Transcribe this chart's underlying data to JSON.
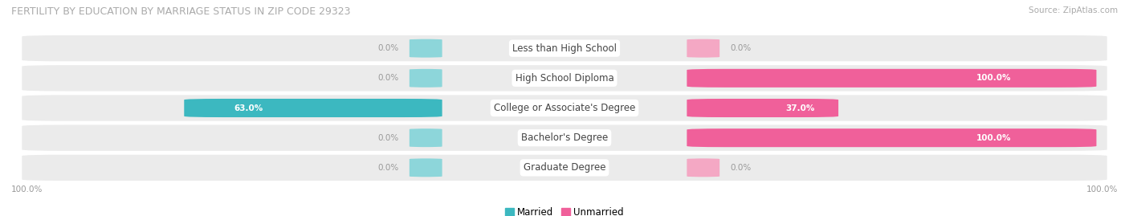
{
  "title": "FERTILITY BY EDUCATION BY MARRIAGE STATUS IN ZIP CODE 29323",
  "source": "Source: ZipAtlas.com",
  "categories": [
    "Less than High School",
    "High School Diploma",
    "College or Associate's Degree",
    "Bachelor's Degree",
    "Graduate Degree"
  ],
  "married": [
    0.0,
    0.0,
    63.0,
    0.0,
    0.0
  ],
  "unmarried": [
    0.0,
    100.0,
    37.0,
    100.0,
    0.0
  ],
  "married_color_full": "#3cb8c0",
  "married_color_stub": "#8dd6da",
  "unmarried_color_full": "#f0609a",
  "unmarried_color_stub": "#f4a8c4",
  "row_bg_color": "#ebebeb",
  "row_bg_alt": "#f5f5f5",
  "label_bg_color": "#ffffff",
  "text_in_bar": "#ffffff",
  "text_outside_bar": "#999999",
  "title_color": "#aaaaaa",
  "source_color": "#aaaaaa",
  "legend_married": "Married",
  "legend_unmarried": "Unmarried",
  "left_axis_label": "100.0%",
  "right_axis_label": "100.0%"
}
